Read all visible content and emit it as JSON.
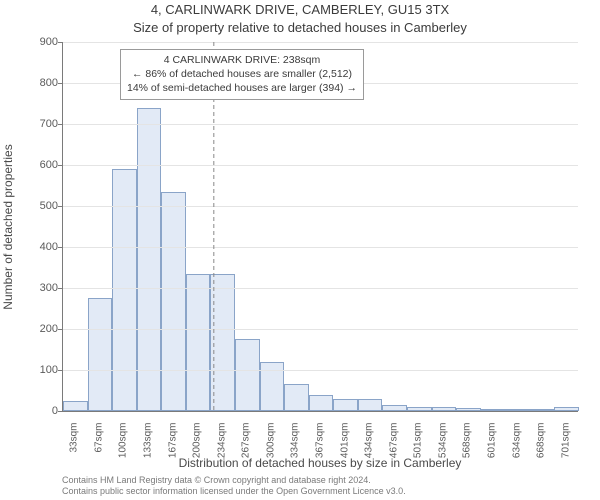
{
  "titles": {
    "line1": "4, CARLINWARK DRIVE, CAMBERLEY, GU15 3TX",
    "line2": "Size of property relative to detached houses in Camberley"
  },
  "ylabel": "Number of detached properties",
  "xlabel": "Distribution of detached houses by size in Camberley",
  "footer": {
    "line1": "Contains HM Land Registry data © Crown copyright and database right 2024.",
    "line2": "Contains public sector information licensed under the Open Government Licence v3.0."
  },
  "annotation": {
    "line1": "4 CARLINWARK DRIVE: 238sqm",
    "line2": "← 86% of detached houses are smaller (2,512)",
    "line3": "14% of semi-detached houses are larger (394) →"
  },
  "chart": {
    "type": "histogram",
    "bar_fill": "#e2eaf6",
    "bar_stroke": "#8aa4c8",
    "grid_color": "#e4e4e4",
    "axis_color": "#7a7a7a",
    "background_color": "#ffffff",
    "vline_x": 238,
    "vline_color": "#888888",
    "vline_dash": "4,3",
    "vline_width": 1,
    "ylim": [
      0,
      900
    ],
    "ytick_step": 100,
    "x_start": 33,
    "x_step": 33.4,
    "bar_width_ratio": 1.0,
    "categories": [
      "33sqm",
      "67sqm",
      "100sqm",
      "133sqm",
      "167sqm",
      "200sqm",
      "234sqm",
      "267sqm",
      "300sqm",
      "334sqm",
      "367sqm",
      "401sqm",
      "434sqm",
      "467sqm",
      "501sqm",
      "534sqm",
      "568sqm",
      "601sqm",
      "634sqm",
      "668sqm",
      "701sqm"
    ],
    "values": [
      25,
      275,
      590,
      740,
      535,
      335,
      335,
      175,
      120,
      65,
      40,
      30,
      30,
      15,
      10,
      10,
      8,
      5,
      3,
      3,
      10
    ],
    "title_fontsize": 13,
    "label_fontsize": 12,
    "tick_fontsize": 11,
    "xtick_fontsize": 10
  }
}
